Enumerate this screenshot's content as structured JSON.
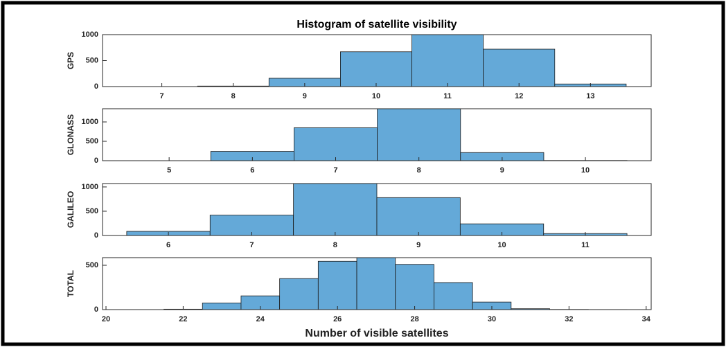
{
  "chart_data": [
    {
      "type": "histogram",
      "title": "Histogram of satellite visibility",
      "ylabel": "GPS",
      "color": "#64a9d8",
      "bins": [
        7.5,
        8.5,
        9.5,
        10.5,
        11.5,
        12.5,
        13.5
      ],
      "values": [
        10,
        160,
        670,
        1040,
        720,
        50
      ],
      "xlim": [
        6.17,
        13.85
      ],
      "xticks": [
        7,
        8,
        9,
        10,
        11,
        12,
        13
      ],
      "ylim": [
        0,
        1000
      ],
      "yticks": [
        0,
        500,
        1000
      ]
    },
    {
      "type": "histogram",
      "ylabel": "GLONASS",
      "color": "#64a9d8",
      "bins": [
        5.5,
        6.5,
        7.5,
        8.5,
        9.5,
        10.5
      ],
      "values": [
        240,
        850,
        1400,
        210,
        5
      ],
      "xlim": [
        4.2,
        10.79
      ],
      "xticks": [
        5,
        6,
        7,
        8,
        9,
        10
      ],
      "ylim": [
        0,
        1340
      ],
      "yticks": [
        0,
        500,
        1000
      ]
    },
    {
      "type": "histogram",
      "ylabel": "GALILEO",
      "color": "#64a9d8",
      "bins": [
        5.5,
        6.5,
        7.5,
        8.5,
        9.5,
        10.5,
        11.5
      ],
      "values": [
        85,
        420,
        1100,
        780,
        240,
        40
      ],
      "xlim": [
        5.21,
        11.79
      ],
      "xticks": [
        6,
        7,
        8,
        9,
        10,
        11
      ],
      "ylim": [
        0,
        1070
      ],
      "yticks": [
        0,
        500,
        1000
      ]
    },
    {
      "type": "histogram",
      "ylabel": "TOTAL",
      "xlabel": "Number of visible satellites",
      "color": "#64a9d8",
      "bins": [
        21.5,
        22.5,
        23.5,
        24.5,
        25.5,
        26.5,
        27.5,
        28.5,
        29.5,
        30.5,
        31.5,
        32.5,
        33.5
      ],
      "values": [
        5,
        75,
        155,
        350,
        545,
        610,
        510,
        305,
        85,
        10,
        2,
        1
      ],
      "xlim": [
        19.91,
        34.13
      ],
      "xticks": [
        20,
        22,
        24,
        26,
        28,
        30,
        32,
        34
      ],
      "ylim": [
        0,
        586
      ],
      "yticks": [
        0,
        500
      ]
    }
  ]
}
